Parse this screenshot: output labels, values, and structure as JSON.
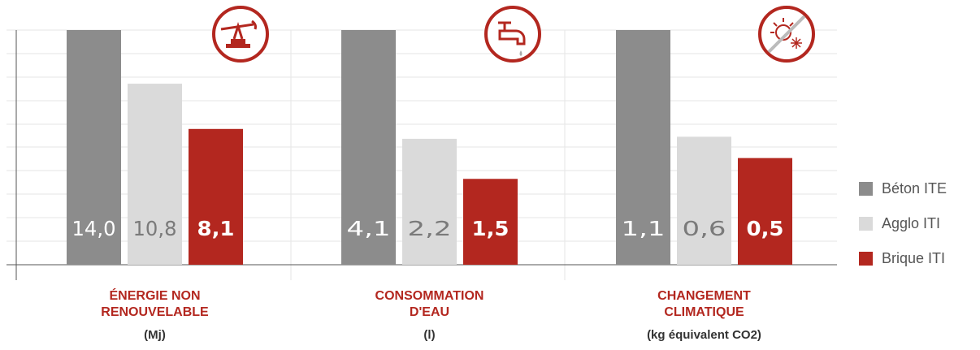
{
  "chart_data": {
    "type": "bar",
    "categories": [
      [
        "ÉNERGIE NON",
        "RENOUVELABLE"
      ],
      [
        "CONSOMMATION",
        "D'EAU"
      ],
      [
        "CHANGEMENT",
        "CLIMATIQUE"
      ]
    ],
    "units": [
      "(Mj)",
      "(l)",
      "(kg équivalent CO2)"
    ],
    "series": [
      {
        "name": "Béton ITE",
        "color": "#8c8c8c",
        "values": [
          14.0,
          4.1,
          1.1
        ],
        "value_labels": [
          "14,0",
          "4,1",
          "1,1"
        ]
      },
      {
        "name": "Agglo ITI",
        "color": "#dadada",
        "values": [
          10.8,
          2.2,
          0.6
        ],
        "value_labels": [
          "10,8",
          "2,2",
          "0,6"
        ]
      },
      {
        "name": "Brique ITI",
        "color": "#b3271f",
        "values": [
          8.1,
          1.5,
          0.5
        ],
        "value_labels": [
          "8,1",
          "1,5",
          "0,5"
        ]
      }
    ],
    "legend": "right"
  }
}
